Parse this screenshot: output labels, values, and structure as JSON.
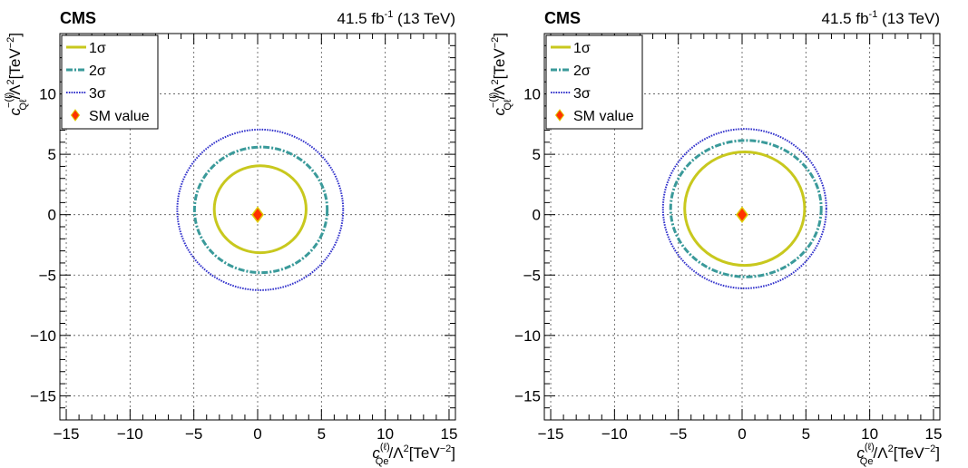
{
  "chart_data": [
    {
      "type": "line",
      "experiment": "CMS",
      "luminosity_label": "41.5 fb",
      "luminosity_exponent": "-1",
      "energy_label": "(13 TeV)",
      "xlabel": {
        "c": "c",
        "sub": "Qe",
        "sup": "(ℓ)",
        "rest": "/Λ",
        "sq": "2",
        "unit": "[TeV",
        "unit_exp": "−2",
        "close": "]"
      },
      "ylabel": {
        "c": "c",
        "sub": "Qℓ",
        "sup": "−(ℓ)",
        "rest": "/Λ",
        "sq": "2",
        "unit": "[TeV",
        "unit_exp": "−2",
        "close": "]"
      },
      "xlim": [
        -15.5,
        15.5
      ],
      "ylim": [
        -17,
        15
      ],
      "xticks": [
        -15,
        -10,
        -5,
        0,
        5,
        10,
        15
      ],
      "yticks": [
        -15,
        -10,
        -5,
        0,
        5,
        10
      ],
      "grid": true,
      "legend_position": "top-left",
      "legend": [
        {
          "key": "s1",
          "label": "1σ"
        },
        {
          "key": "s2",
          "label": "2σ"
        },
        {
          "key": "s3",
          "label": "3σ"
        },
        {
          "key": "sm",
          "label": "SM value"
        }
      ],
      "series": [
        {
          "key": "s1",
          "name": "1σ",
          "color": "#c8c81e",
          "style": "solid",
          "center": [
            0.2,
            0.45
          ],
          "radius_x": 3.6,
          "radius_y": 3.6
        },
        {
          "key": "s2",
          "name": "2σ",
          "color": "#3a9a9a",
          "style": "dashdot",
          "center": [
            0.25,
            0.4
          ],
          "radius_x": 5.2,
          "radius_y": 5.2
        },
        {
          "key": "s3",
          "name": "3σ",
          "color": "#3333cc",
          "style": "dotted",
          "center": [
            0.2,
            0.4
          ],
          "radius_x": 6.5,
          "radius_y": 6.65
        }
      ],
      "sm_value": {
        "x": 0,
        "y": 0,
        "color": "#ff3300",
        "outline": "#ddcc00"
      }
    },
    {
      "type": "line",
      "experiment": "CMS",
      "luminosity_label": "41.5 fb",
      "luminosity_exponent": "-1",
      "energy_label": "(13 TeV)",
      "xlabel": {
        "c": "c",
        "sub": "Qe",
        "sup": "(ℓ)",
        "rest": "/Λ",
        "sq": "2",
        "unit": "[TeV",
        "unit_exp": "−2",
        "close": "]"
      },
      "ylabel": {
        "c": "c",
        "sub": "Qℓ",
        "sup": "−(ℓ)",
        "rest": "/Λ",
        "sq": "2",
        "unit": "[TeV",
        "unit_exp": "−2",
        "close": "]"
      },
      "xlim": [
        -15.5,
        15.5
      ],
      "ylim": [
        -17,
        15
      ],
      "xticks": [
        -15,
        -10,
        -5,
        0,
        5,
        10,
        15
      ],
      "yticks": [
        -15,
        -10,
        -5,
        0,
        5,
        10
      ],
      "grid": true,
      "legend_position": "top-left",
      "legend": [
        {
          "key": "s1",
          "label": "1σ"
        },
        {
          "key": "s2",
          "label": "2σ"
        },
        {
          "key": "s3",
          "label": "3σ"
        },
        {
          "key": "sm",
          "label": "SM value"
        }
      ],
      "series": [
        {
          "key": "s1",
          "name": "1σ",
          "color": "#c8c81e",
          "style": "solid",
          "center": [
            0.2,
            0.5
          ],
          "radius_x": 4.7,
          "radius_y": 4.7
        },
        {
          "key": "s2",
          "name": "2σ",
          "color": "#3a9a9a",
          "style": "dashdot",
          "center": [
            0.3,
            0.5
          ],
          "radius_x": 5.9,
          "radius_y": 5.65
        },
        {
          "key": "s3",
          "name": "3σ",
          "color": "#3333cc",
          "style": "dotted",
          "center": [
            0.2,
            0.5
          ],
          "radius_x": 6.4,
          "radius_y": 6.6
        }
      ],
      "sm_value": {
        "x": 0,
        "y": 0,
        "color": "#ff3300",
        "outline": "#ddcc00"
      }
    }
  ]
}
